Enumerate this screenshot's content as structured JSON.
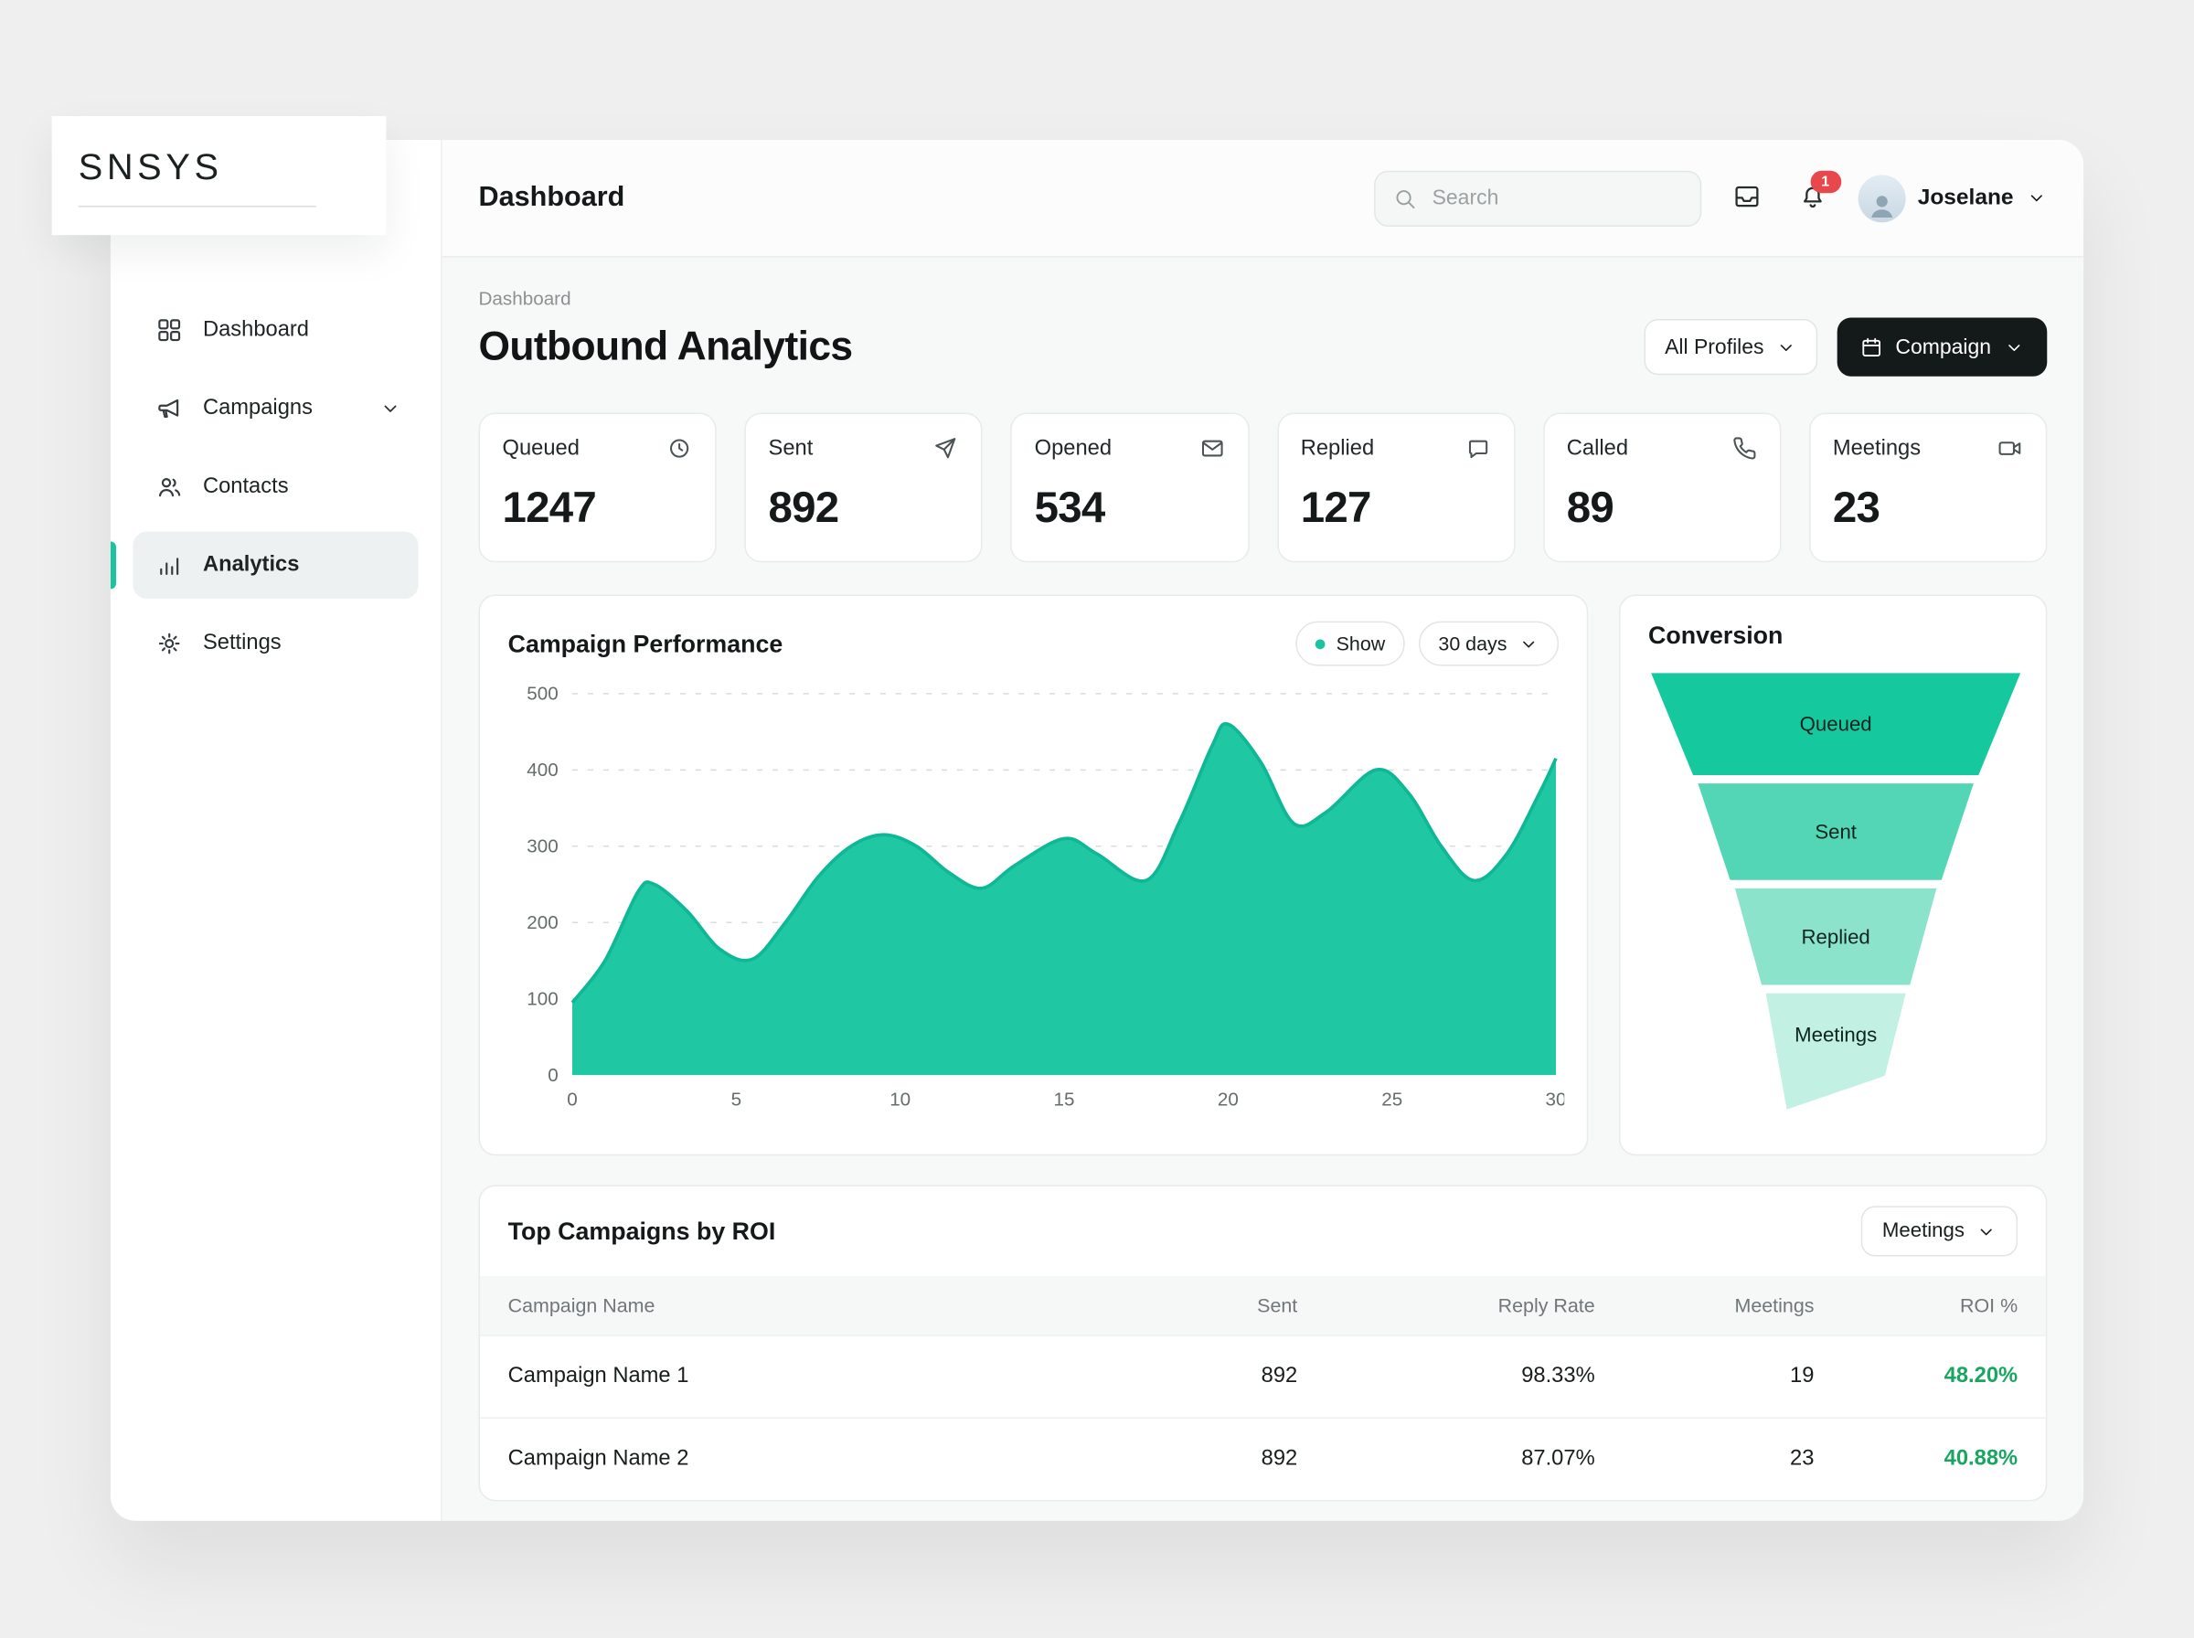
{
  "brand": {
    "logo": "SNSYS"
  },
  "sidebar": {
    "items": [
      {
        "label": "Dashboard",
        "icon": "grid-icon",
        "active": false,
        "chevron": false
      },
      {
        "label": "Campaigns",
        "icon": "megaphone-icon",
        "active": false,
        "chevron": true
      },
      {
        "label": "Contacts",
        "icon": "users-icon",
        "active": false,
        "chevron": false
      },
      {
        "label": "Analytics",
        "icon": "bar-chart-icon",
        "active": true,
        "chevron": false
      },
      {
        "label": "Settings",
        "icon": "gear-icon",
        "active": false,
        "chevron": false
      }
    ]
  },
  "topbar": {
    "title": "Dashboard",
    "search_placeholder": "Search",
    "notification_count": "1",
    "user_name": "Joselane"
  },
  "page": {
    "breadcrumb": "Dashboard",
    "title": "Outbound Analytics",
    "profiles_label": "All Profiles",
    "campaign_label": "Compaign"
  },
  "stats": [
    {
      "label": "Queued",
      "value": "1247",
      "icon": "clock-icon"
    },
    {
      "label": "Sent",
      "value": "892",
      "icon": "send-icon"
    },
    {
      "label": "Opened",
      "value": "534",
      "icon": "mail-icon"
    },
    {
      "label": "Replied",
      "value": "127",
      "icon": "chat-icon"
    },
    {
      "label": "Called",
      "value": "89",
      "icon": "phone-icon"
    },
    {
      "label": "Meetings",
      "value": "23",
      "icon": "video-icon"
    }
  ],
  "performance": {
    "title": "Campaign Performance",
    "legend_label": "Show",
    "range_label": "30 days"
  },
  "conversion": {
    "title": "Conversion"
  },
  "table": {
    "title": "Top Campaigns by ROI",
    "filter_label": "Meetings",
    "columns": [
      "Campaign Name",
      "Sent",
      "Reply Rate",
      "Meetings",
      "ROI %"
    ],
    "rows": [
      {
        "name": "Campaign Name 1",
        "sent": "892",
        "reply_rate": "98.33%",
        "meetings": "19",
        "roi": "48.20%"
      },
      {
        "name": "Campaign Name 2",
        "sent": "892",
        "reply_rate": "87.07%",
        "meetings": "23",
        "roi": "40.88%"
      }
    ],
    "roi_color": "#18a661"
  },
  "colors": {
    "accent": "#1cc3a0",
    "badge_red": "#e8474b",
    "dark_button": "#141a19",
    "roi_green": "#18a661"
  },
  "chart_data": [
    {
      "type": "area",
      "title": "Campaign Performance",
      "xlabel": "",
      "ylabel": "",
      "xlim": [
        0,
        30
      ],
      "ylim": [
        0,
        500
      ],
      "xticks": [
        0,
        5,
        10,
        15,
        20,
        25,
        30
      ],
      "yticks": [
        0,
        100,
        200,
        300,
        400,
        500
      ],
      "grid": "horizontal-dashed",
      "legend": [
        "Show"
      ],
      "legend_position": "top-right",
      "series": [
        {
          "name": "Show",
          "color": "#1fc7a2",
          "points": [
            [
              0,
              95
            ],
            [
              1,
              150
            ],
            [
              2,
              240
            ],
            [
              2.5,
              250
            ],
            [
              3.5,
              215
            ],
            [
              4.5,
              165
            ],
            [
              5.5,
              152
            ],
            [
              6.5,
              200
            ],
            [
              7.5,
              260
            ],
            [
              8.5,
              300
            ],
            [
              9.5,
              315
            ],
            [
              10.5,
              300
            ],
            [
              11.5,
              265
            ],
            [
              12.5,
              245
            ],
            [
              13.5,
              275
            ],
            [
              15,
              310
            ],
            [
              16,
              290
            ],
            [
              17.5,
              255
            ],
            [
              18.5,
              330
            ],
            [
              19.5,
              430
            ],
            [
              20,
              460
            ],
            [
              21,
              410
            ],
            [
              22,
              330
            ],
            [
              23,
              345
            ],
            [
              24.5,
              400
            ],
            [
              25.5,
              370
            ],
            [
              26.5,
              300
            ],
            [
              27.5,
              255
            ],
            [
              28.5,
              290
            ],
            [
              29.5,
              370
            ],
            [
              30,
              415
            ]
          ]
        }
      ]
    },
    {
      "type": "funnel",
      "title": "Conversion",
      "gap": 6,
      "stages": [
        {
          "label": "Queued",
          "color": "#15c89d",
          "top_width": 264,
          "bottom_width": 204,
          "height": 73
        },
        {
          "label": "Sent",
          "color": "#53d6b6",
          "top_width": 197,
          "bottom_width": 151,
          "height": 69
        },
        {
          "label": "Replied",
          "color": "#8ce3cc",
          "top_width": 144,
          "bottom_width": 106,
          "height": 69
        },
        {
          "label": "Meetings",
          "color": "#c2f0e2",
          "top_width": 100,
          "bottom_width": 70,
          "height": 59,
          "tail": 24
        }
      ]
    }
  ]
}
